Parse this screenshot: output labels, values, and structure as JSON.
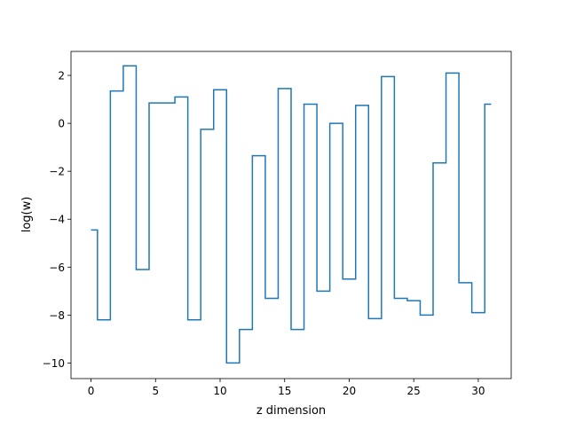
{
  "chart_data": {
    "type": "line",
    "drawstyle": "steps-mid",
    "title": "",
    "xlabel": "z dimension",
    "ylabel": "log(w)",
    "xlim": [
      -1.55,
      32.55
    ],
    "ylim": [
      -10.65,
      3.0
    ],
    "x_ticks": [
      0,
      5,
      10,
      15,
      20,
      25,
      30
    ],
    "y_ticks": [
      -10,
      -8,
      -6,
      -4,
      -2,
      0,
      2
    ],
    "x_tick_labels": [
      "0",
      "5",
      "10",
      "15",
      "20",
      "25",
      "30"
    ],
    "y_tick_labels": [
      "−10",
      "−8",
      "−6",
      "−4",
      "−2",
      "0",
      "2"
    ],
    "grid": false,
    "series": [
      {
        "color": "#1f77b4",
        "x": [
          0,
          1,
          2,
          3,
          4,
          5,
          6,
          7,
          8,
          9,
          10,
          11,
          12,
          13,
          14,
          15,
          16,
          17,
          18,
          19,
          20,
          21,
          22,
          23,
          24,
          25,
          26,
          27,
          28,
          29,
          30,
          31
        ],
        "y": [
          -4.45,
          -8.2,
          1.35,
          2.4,
          -6.1,
          0.85,
          0.85,
          1.1,
          -8.2,
          -0.25,
          1.4,
          -10.0,
          -8.6,
          -1.35,
          -7.3,
          1.45,
          -8.6,
          0.8,
          -7.0,
          0.0,
          -6.5,
          0.75,
          -8.15,
          1.95,
          -7.3,
          -7.4,
          -8.0,
          -1.65,
          2.1,
          -6.65,
          -7.9,
          0.8
        ]
      }
    ]
  }
}
